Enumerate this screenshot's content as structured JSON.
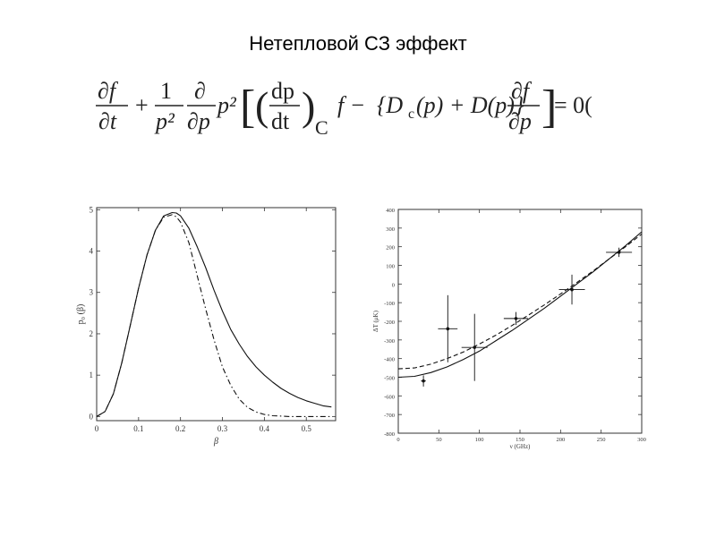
{
  "slide": {
    "title": "Нетепловой СЗ эффект"
  },
  "equation": {
    "df": "∂f",
    "dt": "∂t",
    "plus": "+",
    "one": "1",
    "p2": "p²",
    "d": "∂",
    "dp": "∂p",
    "p2b": "p²",
    "lbrack": "[",
    "lparen": "(",
    "dp_upright": "dp",
    "dt_upright": "dt",
    "rparen": ")",
    "subC": "C",
    "f_minus": "f −",
    "brace_term": "{D",
    "sub_c": "c",
    "brace_rest": "(p) + D(p)}",
    "df2": "∂f",
    "dp2": "∂p",
    "rbrack": "]",
    "equals": "= 0("
  },
  "chart_data": [
    {
      "type": "line",
      "title": "",
      "xlabel": "β",
      "ylabel": "p₀ (β)",
      "xlim": [
        0,
        0.57
      ],
      "ylim": [
        -0.1,
        5.05
      ],
      "x_ticks": [
        0,
        0.1,
        0.2,
        0.3,
        0.4,
        0.5
      ],
      "x_tick_labels": [
        "0",
        "0.1",
        "0.2",
        "0.3",
        "0.4",
        "0.5"
      ],
      "y_ticks": [
        0,
        1,
        2,
        3,
        4,
        5
      ],
      "y_tick_labels": [
        "0",
        "1",
        "2",
        "3",
        "4",
        "5"
      ],
      "grid": false,
      "series": [
        {
          "style": "solid",
          "x": [
            0,
            0.02,
            0.04,
            0.06,
            0.08,
            0.1,
            0.12,
            0.14,
            0.16,
            0.18,
            0.19,
            0.2,
            0.22,
            0.24,
            0.26,
            0.28,
            0.3,
            0.32,
            0.34,
            0.36,
            0.38,
            0.4,
            0.42,
            0.44,
            0.46,
            0.48,
            0.5,
            0.52,
            0.54,
            0.56
          ],
          "y": [
            0,
            0.12,
            0.55,
            1.3,
            2.2,
            3.1,
            3.9,
            4.5,
            4.85,
            4.93,
            4.92,
            4.85,
            4.55,
            4.1,
            3.6,
            3.05,
            2.55,
            2.1,
            1.75,
            1.45,
            1.2,
            1.0,
            0.83,
            0.68,
            0.56,
            0.46,
            0.38,
            0.32,
            0.26,
            0.23
          ]
        },
        {
          "style": "dash-dot",
          "x": [
            0,
            0.02,
            0.04,
            0.06,
            0.08,
            0.1,
            0.12,
            0.14,
            0.16,
            0.18,
            0.19,
            0.2,
            0.22,
            0.24,
            0.26,
            0.28,
            0.3,
            0.32,
            0.34,
            0.36,
            0.38,
            0.4,
            0.42,
            0.44,
            0.46,
            0.48,
            0.5,
            0.52,
            0.54,
            0.56
          ],
          "y": [
            0,
            0.12,
            0.55,
            1.3,
            2.2,
            3.1,
            3.9,
            4.5,
            4.82,
            4.88,
            4.83,
            4.7,
            4.2,
            3.4,
            2.6,
            1.85,
            1.2,
            0.75,
            0.42,
            0.22,
            0.11,
            0.05,
            0.02,
            0.01,
            0,
            0,
            0,
            0,
            0,
            0
          ]
        }
      ]
    },
    {
      "type": "scatter",
      "title": "",
      "xlabel": "ν (GHz)",
      "ylabel": "ΔT (μK)",
      "xlim": [
        0,
        300
      ],
      "ylim": [
        -800,
        400
      ],
      "x_ticks": [
        0,
        50,
        100,
        150,
        200,
        250,
        300
      ],
      "x_tick_labels": [
        "0",
        "50",
        "100",
        "150",
        "200",
        "250",
        "300"
      ],
      "y_ticks": [
        -800,
        -700,
        -600,
        -500,
        -400,
        -300,
        -200,
        -100,
        0,
        100,
        200,
        300,
        400
      ],
      "y_tick_labels": [
        "-800",
        "-700",
        "-600",
        "-500",
        "-400",
        "-300",
        "-200",
        "-100",
        "0",
        "100",
        "200",
        "300",
        "400"
      ],
      "grid": false,
      "points": [
        {
          "x": 31,
          "y": -520,
          "xerr": 3,
          "yerr": 30
        },
        {
          "x": 61,
          "y": -240,
          "xerr": 12,
          "yerr": 180
        },
        {
          "x": 94,
          "y": -340,
          "xerr": 16,
          "yerr": 180
        },
        {
          "x": 145,
          "y": -185,
          "xerr": 15,
          "yerr": 35
        },
        {
          "x": 214,
          "y": -30,
          "xerr": 16,
          "yerr": 80
        },
        {
          "x": 272,
          "y": 170,
          "xerr": 16,
          "yerr": 25
        }
      ],
      "series": [
        {
          "style": "solid",
          "x": [
            0,
            20,
            40,
            60,
            80,
            100,
            120,
            140,
            160,
            180,
            200,
            220,
            240,
            260,
            280,
            300
          ],
          "y": [
            -500,
            -495,
            -475,
            -445,
            -405,
            -360,
            -305,
            -250,
            -190,
            -130,
            -65,
            0,
            65,
            135,
            205,
            280
          ]
        },
        {
          "style": "dashed",
          "x": [
            0,
            20,
            40,
            60,
            80,
            100,
            120,
            140,
            160,
            180,
            200,
            220,
            240,
            260,
            280,
            300
          ],
          "y": [
            -455,
            -450,
            -430,
            -400,
            -365,
            -322,
            -275,
            -223,
            -168,
            -112,
            -53,
            8,
            70,
            135,
            200,
            268
          ]
        }
      ]
    }
  ]
}
